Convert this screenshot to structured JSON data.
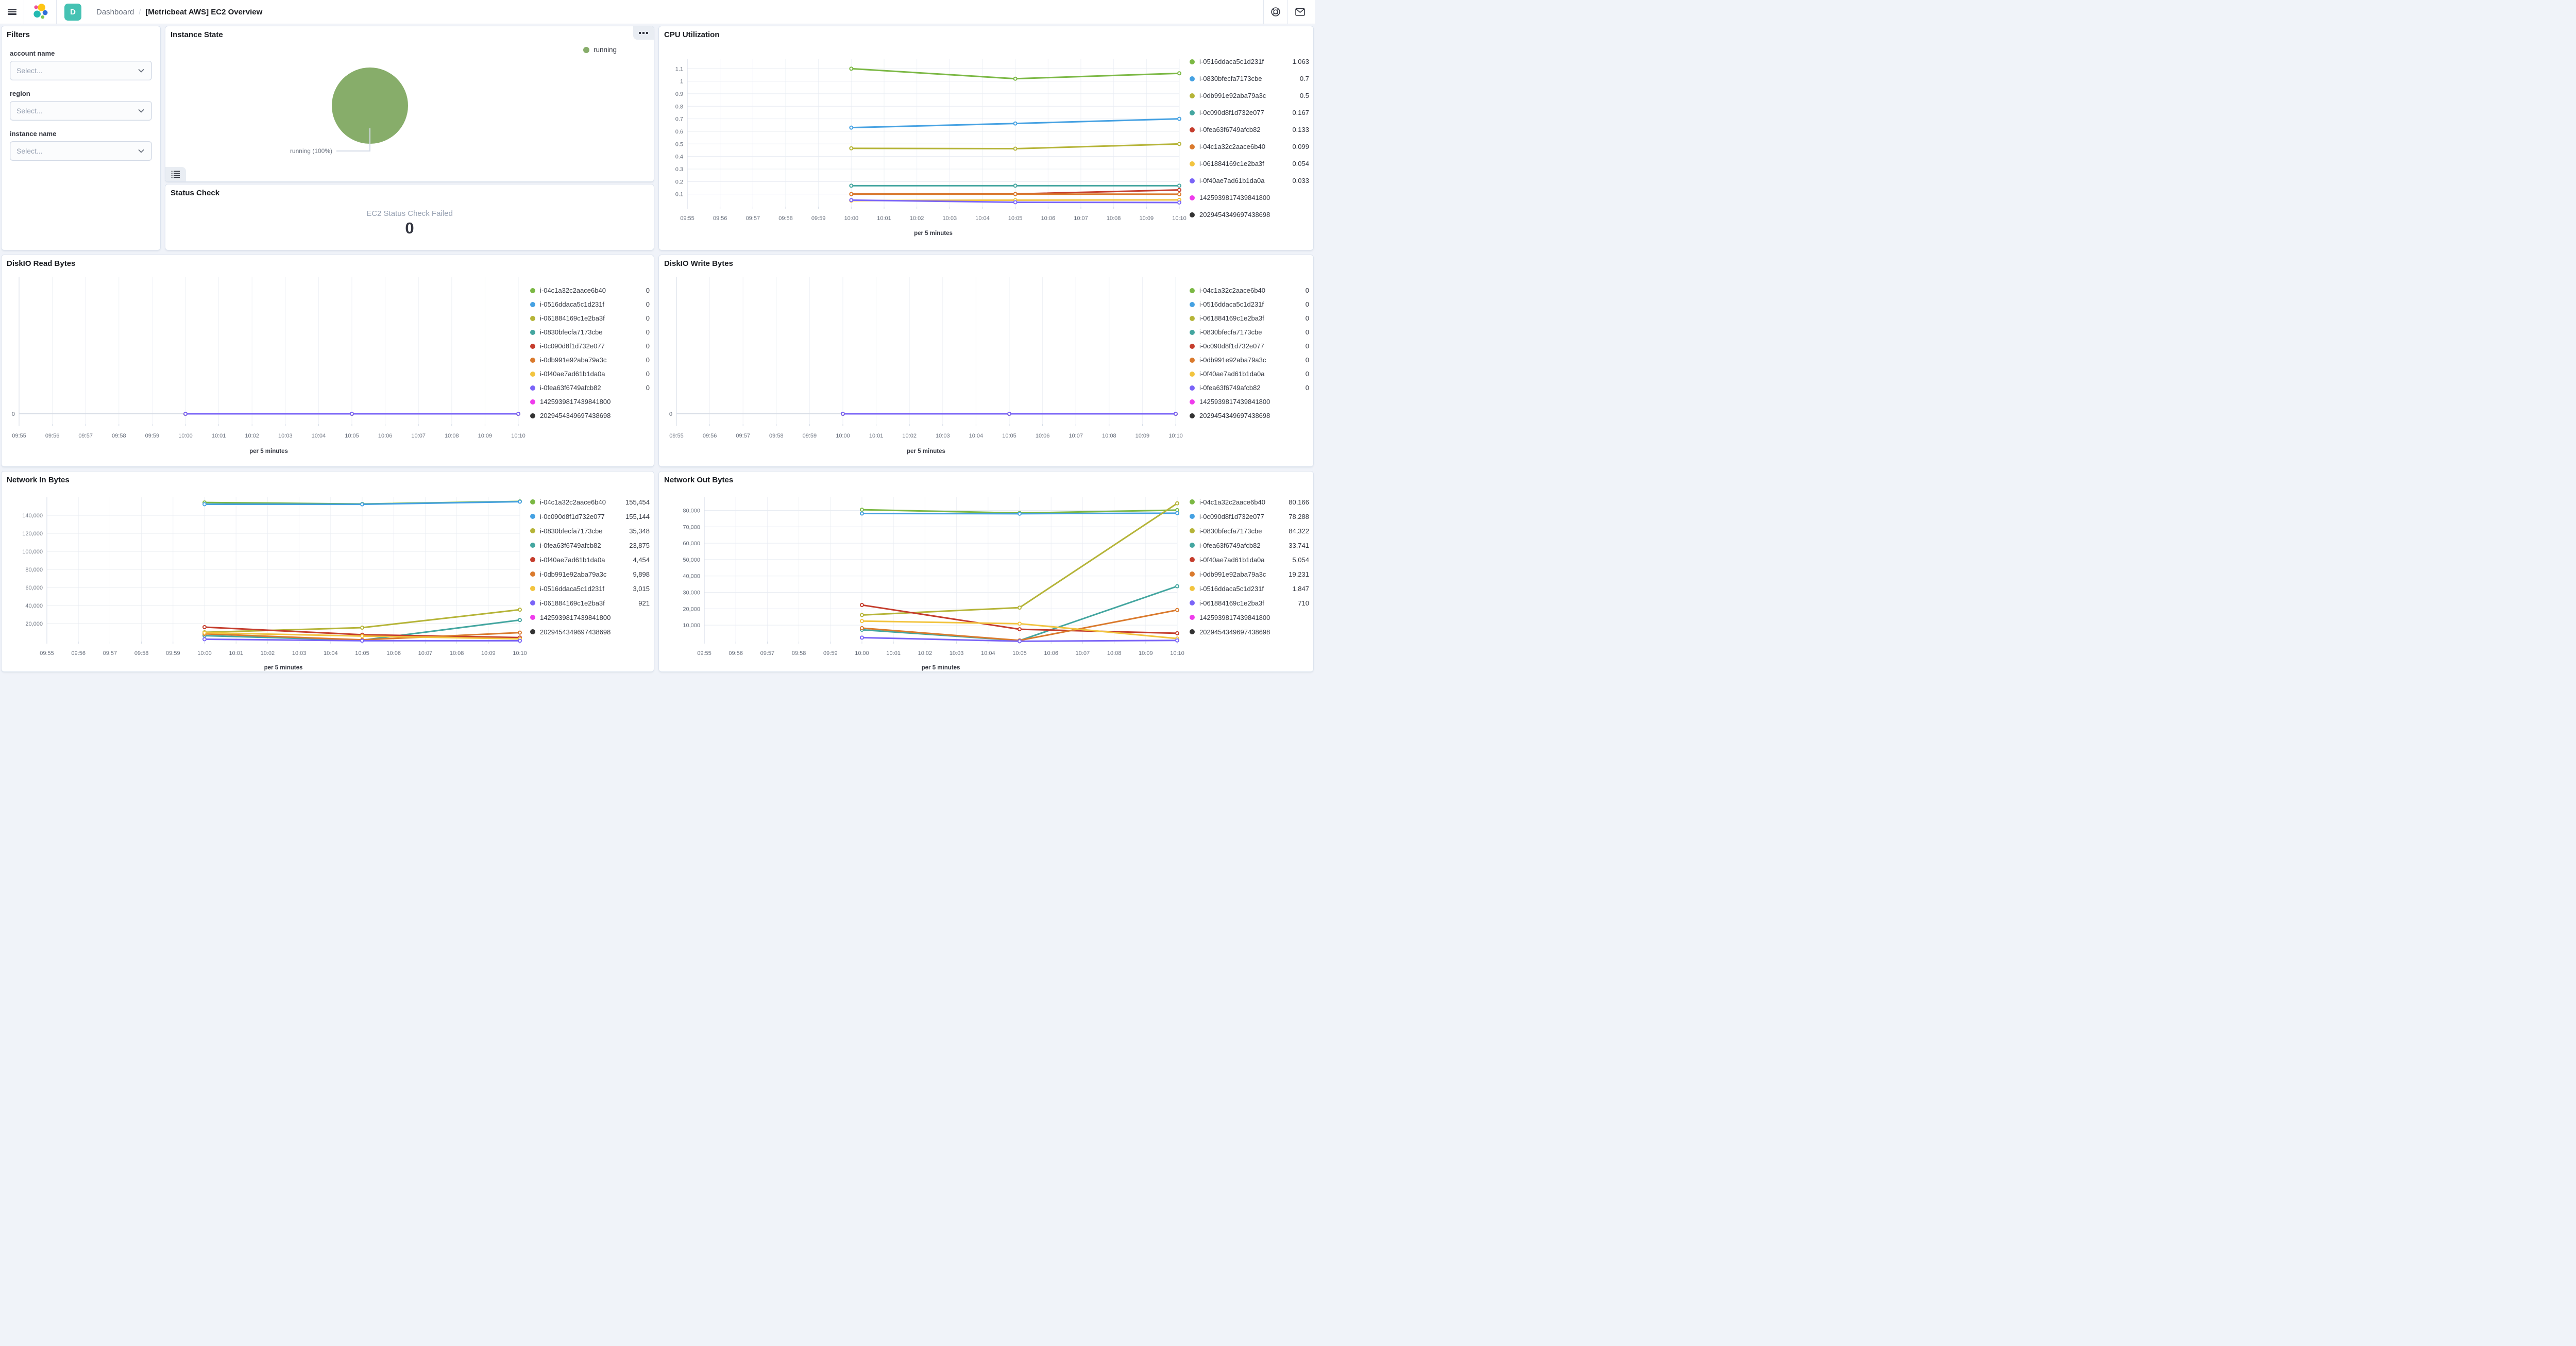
{
  "nav": {
    "breadcrumb_section": "Dashboard",
    "breadcrumb_separator": "/",
    "title": "[Metricbeat AWS] EC2 Overview",
    "app_badge": "D",
    "icons": [
      "menu-icon",
      "elastic-logo",
      "help-icon",
      "newsfeed-icon"
    ]
  },
  "filters": {
    "title": "Filters",
    "fields": [
      {
        "label": "account name",
        "placeholder": "Select..."
      },
      {
        "label": "region",
        "placeholder": "Select..."
      },
      {
        "label": "instance name",
        "placeholder": "Select..."
      }
    ]
  },
  "panels": {
    "instance_state": "Instance State",
    "status_check": "Status Check",
    "cpu": "CPU Utilization",
    "diskio_read": "DiskIO Read Bytes",
    "diskio_write": "DiskIO Write Bytes",
    "net_in": "Network In Bytes",
    "net_out": "Network Out Bytes"
  },
  "status_check": {
    "label": "EC2 Status Check Failed",
    "value": "0"
  },
  "chart_data": [
    {
      "id": "instance-state",
      "type": "pie",
      "title": "Instance State",
      "slices": [
        {
          "label": "running",
          "value": 100,
          "color": "#87ad6a"
        }
      ],
      "callout_label": "running (100%)",
      "legend": [
        {
          "label": "running",
          "color": "#87ad6a"
        }
      ],
      "legend_position": "top-right"
    },
    {
      "id": "cpu",
      "type": "line",
      "title": "CPU Utilization",
      "xlabel": "per 5 minutes",
      "x_ticks": [
        "09:55",
        "09:56",
        "09:57",
        "09:58",
        "09:59",
        "10:00",
        "10:01",
        "10:02",
        "10:03",
        "10:04",
        "10:05",
        "10:06",
        "10:07",
        "10:08",
        "10:09",
        "10:10"
      ],
      "points_x": [
        "10:00",
        "10:05",
        "10:10"
      ],
      "ylim": [
        0,
        1.175
      ],
      "y_ticks": [
        {
          "v": 0.1,
          "label": "0.1"
        },
        {
          "v": 0.2,
          "label": "0.2"
        },
        {
          "v": 0.3,
          "label": "0.3"
        },
        {
          "v": 0.4,
          "label": "0.4"
        },
        {
          "v": 0.5,
          "label": "0.5"
        },
        {
          "v": 0.6,
          "label": "0.6"
        },
        {
          "v": 0.7,
          "label": "0.7"
        },
        {
          "v": 0.8,
          "label": "0.8"
        },
        {
          "v": 0.9,
          "label": "0.9"
        },
        {
          "v": 1,
          "label": "1"
        },
        {
          "v": 1.1,
          "label": "1.1"
        }
      ],
      "series": [
        {
          "name": "i-0516ddaca5c1d231f",
          "color": "#7bb844",
          "values": [
            1.1,
            1.02,
            1.063
          ],
          "value_label": "1.063"
        },
        {
          "name": "i-0830bfecfa7173cbe",
          "color": "#45a1e2",
          "values": [
            0.63,
            0.663,
            0.7
          ],
          "value_label": "0.7"
        },
        {
          "name": "i-0db991e92aba79a3c",
          "color": "#b5b438",
          "values": [
            0.465,
            0.462,
            0.5
          ],
          "value_label": "0.5"
        },
        {
          "name": "i-0c090d8f1d732e077",
          "color": "#44a6a0",
          "values": [
            0.167,
            0.167,
            0.167
          ],
          "value_label": "0.167"
        },
        {
          "name": "i-0fea63f6749afcb82",
          "color": "#c53d2d",
          "values": [
            0.1,
            0.101,
            0.133
          ],
          "value_label": "0.133"
        },
        {
          "name": "i-04c1a32c2aace6b40",
          "color": "#da7a2d",
          "values": [
            0.1,
            0.1,
            0.099
          ],
          "value_label": "0.099"
        },
        {
          "name": "i-061884169c1e2ba3f",
          "color": "#f2c43f",
          "values": [
            0.048,
            0.052,
            0.054
          ],
          "value_label": "0.054"
        },
        {
          "name": "i-0f40ae7ad61b1da0a",
          "color": "#7a64f7",
          "values": [
            0.052,
            0.035,
            0.033
          ],
          "value_label": "0.033"
        },
        {
          "name": "1425939817439841800",
          "color": "#ef3cec",
          "values": null,
          "value_label": ""
        },
        {
          "name": "2029454349697438698",
          "color": "#333333",
          "values": null,
          "value_label": ""
        }
      ]
    },
    {
      "id": "diskio-read",
      "type": "line",
      "title": "DiskIO Read Bytes",
      "xlabel": "per 5 minutes",
      "x_ticks": [
        "09:55",
        "09:56",
        "09:57",
        "09:58",
        "09:59",
        "10:00",
        "10:01",
        "10:02",
        "10:03",
        "10:04",
        "10:05",
        "10:06",
        "10:07",
        "10:08",
        "10:09",
        "10:10"
      ],
      "points_x": [
        "10:00",
        "10:05",
        "10:10"
      ],
      "ylim": [
        -0.075,
        1
      ],
      "y_ticks": [
        {
          "v": 0,
          "label": "0",
          "strong": true
        }
      ],
      "series": [
        {
          "name": "i-04c1a32c2aace6b40",
          "color": "#7bb844",
          "values": [
            0,
            0,
            0
          ],
          "value_label": "0"
        },
        {
          "name": "i-0516ddaca5c1d231f",
          "color": "#45a1e2",
          "values": [
            0,
            0,
            0
          ],
          "value_label": "0"
        },
        {
          "name": "i-061884169c1e2ba3f",
          "color": "#b5b438",
          "values": [
            0,
            0,
            0
          ],
          "value_label": "0"
        },
        {
          "name": "i-0830bfecfa7173cbe",
          "color": "#44a6a0",
          "values": [
            0,
            0,
            0
          ],
          "value_label": "0"
        },
        {
          "name": "i-0c090d8f1d732e077",
          "color": "#c53d2d",
          "values": [
            0,
            0,
            0
          ],
          "value_label": "0"
        },
        {
          "name": "i-0db991e92aba79a3c",
          "color": "#da7a2d",
          "values": [
            0,
            0,
            0
          ],
          "value_label": "0"
        },
        {
          "name": "i-0f40ae7ad61b1da0a",
          "color": "#f2c43f",
          "values": [
            0,
            0,
            0
          ],
          "value_label": "0"
        },
        {
          "name": "i-0fea63f6749afcb82",
          "color": "#7a64f7",
          "values": [
            0,
            0,
            0
          ],
          "value_label": "0"
        },
        {
          "name": "1425939817439841800",
          "color": "#ef3cec",
          "values": null,
          "value_label": ""
        },
        {
          "name": "2029454349697438698",
          "color": "#333333",
          "values": null,
          "value_label": ""
        }
      ]
    },
    {
      "id": "diskio-write",
      "type": "line",
      "title": "DiskIO Write Bytes",
      "xlabel": "per 5 minutes",
      "x_ticks": [
        "09:55",
        "09:56",
        "09:57",
        "09:58",
        "09:59",
        "10:00",
        "10:01",
        "10:02",
        "10:03",
        "10:04",
        "10:05",
        "10:06",
        "10:07",
        "10:08",
        "10:09",
        "10:10"
      ],
      "points_x": [
        "10:00",
        "10:05",
        "10:10"
      ],
      "ylim": [
        -0.075,
        1
      ],
      "y_ticks": [
        {
          "v": 0,
          "label": "0",
          "strong": true
        }
      ],
      "series": [
        {
          "name": "i-04c1a32c2aace6b40",
          "color": "#7bb844",
          "values": [
            0,
            0,
            0
          ],
          "value_label": "0"
        },
        {
          "name": "i-0516ddaca5c1d231f",
          "color": "#45a1e2",
          "values": [
            0,
            0,
            0
          ],
          "value_label": "0"
        },
        {
          "name": "i-061884169c1e2ba3f",
          "color": "#b5b438",
          "values": [
            0,
            0,
            0
          ],
          "value_label": "0"
        },
        {
          "name": "i-0830bfecfa7173cbe",
          "color": "#44a6a0",
          "values": [
            0,
            0,
            0
          ],
          "value_label": "0"
        },
        {
          "name": "i-0c090d8f1d732e077",
          "color": "#c53d2d",
          "values": [
            0,
            0,
            0
          ],
          "value_label": "0"
        },
        {
          "name": "i-0db991e92aba79a3c",
          "color": "#da7a2d",
          "values": [
            0,
            0,
            0
          ],
          "value_label": "0"
        },
        {
          "name": "i-0f40ae7ad61b1da0a",
          "color": "#f2c43f",
          "values": [
            0,
            0,
            0
          ],
          "value_label": "0"
        },
        {
          "name": "i-0fea63f6749afcb82",
          "color": "#7a64f7",
          "values": [
            0,
            0,
            0
          ],
          "value_label": "0"
        },
        {
          "name": "1425939817439841800",
          "color": "#ef3cec",
          "values": null,
          "value_label": ""
        },
        {
          "name": "2029454349697438698",
          "color": "#333333",
          "values": null,
          "value_label": ""
        }
      ]
    },
    {
      "id": "net-in",
      "type": "line",
      "title": "Network In Bytes",
      "xlabel": "per 5 minutes",
      "x_ticks": [
        "09:55",
        "09:56",
        "09:57",
        "09:58",
        "09:59",
        "10:00",
        "10:01",
        "10:02",
        "10:03",
        "10:04",
        "10:05",
        "10:06",
        "10:07",
        "10:08",
        "10:09",
        "10:10"
      ],
      "points_x": [
        "10:00",
        "10:05",
        "10:10"
      ],
      "ylim": [
        0,
        160000
      ],
      "y_ticks": [
        {
          "v": 20000,
          "label": "20,000"
        },
        {
          "v": 40000,
          "label": "40,000"
        },
        {
          "v": 60000,
          "label": "60,000"
        },
        {
          "v": 80000,
          "label": "80,000"
        },
        {
          "v": 100000,
          "label": "100,000"
        },
        {
          "v": 120000,
          "label": "120,000"
        },
        {
          "v": 140000,
          "label": "140,000"
        }
      ],
      "series": [
        {
          "name": "i-04c1a32c2aace6b40",
          "color": "#7bb844",
          "values": [
            154200,
            152600,
            155454
          ],
          "value_label": "155,454"
        },
        {
          "name": "i-0c090d8f1d732e077",
          "color": "#45a1e2",
          "values": [
            152300,
            152200,
            155144
          ],
          "value_label": "155,144"
        },
        {
          "name": "i-0830bfecfa7173cbe",
          "color": "#b5b438",
          "values": [
            10300,
            15400,
            35348
          ],
          "value_label": "35,348"
        },
        {
          "name": "i-0fea63f6749afcb82",
          "color": "#44a6a0",
          "values": [
            6600,
            1500,
            23875
          ],
          "value_label": "23,875"
        },
        {
          "name": "i-0f40ae7ad61b1da0a",
          "color": "#c53d2d",
          "values": [
            16000,
            7600,
            4454
          ],
          "value_label": "4,454"
        },
        {
          "name": "i-0db991e92aba79a3c",
          "color": "#da7a2d",
          "values": [
            8600,
            1900,
            9898
          ],
          "value_label": "9,898"
        },
        {
          "name": "i-0516ddaca5c1d231f",
          "color": "#f2c43f",
          "values": [
            9800,
            6100,
            3015
          ],
          "value_label": "3,015"
        },
        {
          "name": "i-061884169c1e2ba3f",
          "color": "#7a64f7",
          "values": [
            2600,
            950,
            921
          ],
          "value_label": "921"
        },
        {
          "name": "1425939817439841800",
          "color": "#ef3cec",
          "values": null,
          "value_label": ""
        },
        {
          "name": "2029454349697438698",
          "color": "#333333",
          "values": null,
          "value_label": ""
        }
      ]
    },
    {
      "id": "net-out",
      "type": "line",
      "title": "Network Out Bytes",
      "xlabel": "per 5 minutes",
      "x_ticks": [
        "09:55",
        "09:56",
        "09:57",
        "09:58",
        "09:59",
        "10:00",
        "10:01",
        "10:02",
        "10:03",
        "10:04",
        "10:05",
        "10:06",
        "10:07",
        "10:08",
        "10:09",
        "10:10"
      ],
      "points_x": [
        "10:00",
        "10:05",
        "10:10"
      ],
      "ylim": [
        0,
        88000
      ],
      "y_ticks": [
        {
          "v": 10000,
          "label": "10,000"
        },
        {
          "v": 20000,
          "label": "20,000"
        },
        {
          "v": 30000,
          "label": "30,000"
        },
        {
          "v": 40000,
          "label": "40,000"
        },
        {
          "v": 50000,
          "label": "50,000"
        },
        {
          "v": 60000,
          "label": "60,000"
        },
        {
          "v": 70000,
          "label": "70,000"
        },
        {
          "v": 80000,
          "label": "80,000"
        }
      ],
      "series": [
        {
          "name": "i-04c1a32c2aace6b40",
          "color": "#7bb844",
          "values": [
            80400,
            78400,
            80166
          ],
          "value_label": "80,166"
        },
        {
          "name": "i-0c090d8f1d732e077",
          "color": "#45a1e2",
          "values": [
            78100,
            78000,
            78288
          ],
          "value_label": "78,288"
        },
        {
          "name": "i-0830bfecfa7173cbe",
          "color": "#b5b438",
          "values": [
            16200,
            20700,
            84322
          ],
          "value_label": "84,322"
        },
        {
          "name": "i-0fea63f6749afcb82",
          "color": "#44a6a0",
          "values": [
            7200,
            600,
            33741
          ],
          "value_label": "33,741"
        },
        {
          "name": "i-0f40ae7ad61b1da0a",
          "color": "#c53d2d",
          "values": [
            22300,
            7500,
            5054
          ],
          "value_label": "5,054"
        },
        {
          "name": "i-0db991e92aba79a3c",
          "color": "#da7a2d",
          "values": [
            8200,
            700,
            19231
          ],
          "value_label": "19,231"
        },
        {
          "name": "i-0516ddaca5c1d231f",
          "color": "#f2c43f",
          "values": [
            12500,
            10900,
            1847
          ],
          "value_label": "1,847"
        },
        {
          "name": "i-061884169c1e2ba3f",
          "color": "#7a64f7",
          "values": [
            2400,
            200,
            710
          ],
          "value_label": "710"
        },
        {
          "name": "1425939817439841800",
          "color": "#ef3cec",
          "values": null,
          "value_label": ""
        },
        {
          "name": "2029454349697438698",
          "color": "#333333",
          "values": null,
          "value_label": ""
        }
      ]
    }
  ]
}
